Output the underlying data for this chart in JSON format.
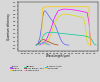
{
  "background": "#d8d8d8",
  "curves": {
    "silicon": {
      "color": "#6060ff",
      "x": [
        0.2,
        0.25,
        0.3,
        0.35,
        0.38,
        0.4,
        0.42,
        0.45,
        0.5,
        0.55,
        0.6,
        0.65,
        0.7,
        0.75,
        0.8,
        0.85,
        0.9,
        0.95,
        1.0,
        1.05,
        1.1
      ],
      "y": [
        0.0,
        0.05,
        0.18,
        0.5,
        0.72,
        0.82,
        0.88,
        0.88,
        0.82,
        0.75,
        0.68,
        0.62,
        0.55,
        0.45,
        0.32,
        0.2,
        0.1,
        0.04,
        0.01,
        0.0,
        0.0
      ]
    },
    "ingaas": {
      "color": "#ff00ff",
      "x": [
        0.3,
        0.35,
        0.4,
        0.45,
        0.5,
        0.6,
        0.7,
        0.8,
        0.9,
        1.0,
        1.1,
        1.2,
        1.3,
        1.4,
        1.5,
        1.6,
        1.65,
        1.7
      ],
      "y": [
        0.0,
        0.02,
        0.05,
        0.1,
        0.18,
        0.4,
        0.7,
        0.88,
        0.92,
        0.93,
        0.92,
        0.91,
        0.9,
        0.88,
        0.86,
        0.84,
        0.6,
        0.0
      ]
    },
    "ingaasinp": {
      "color": "#dddd00",
      "x": [
        0.4,
        0.45,
        0.5,
        0.6,
        0.7,
        0.8,
        0.9,
        1.0,
        1.1,
        1.2,
        1.3,
        1.4,
        1.5,
        1.55,
        1.6,
        1.65
      ],
      "y": [
        0.0,
        0.02,
        0.06,
        0.25,
        0.55,
        0.72,
        0.78,
        0.8,
        0.79,
        0.77,
        0.75,
        0.73,
        0.7,
        0.5,
        0.1,
        0.0
      ]
    },
    "hgcdte": {
      "color": "#00cc99",
      "x": [
        0.2,
        0.25,
        0.3,
        0.35,
        0.4,
        0.45,
        0.5,
        0.55,
        0.6,
        0.65,
        0.7,
        0.75,
        0.8,
        0.9,
        1.0,
        1.1,
        1.2,
        1.3,
        1.4,
        1.5,
        1.6,
        1.7,
        1.75,
        1.8,
        1.85
      ],
      "y": [
        0.0,
        0.02,
        0.08,
        0.15,
        0.25,
        0.3,
        0.32,
        0.33,
        0.33,
        0.33,
        0.32,
        0.32,
        0.31,
        0.3,
        0.29,
        0.28,
        0.27,
        0.26,
        0.25,
        0.24,
        0.22,
        0.18,
        0.1,
        0.02,
        0.0
      ]
    },
    "ccd": {
      "color": "#aa4400",
      "x": [
        0.2,
        0.25,
        0.28,
        0.3,
        0.32,
        0.35,
        0.38,
        0.4,
        0.42,
        0.45,
        0.5,
        0.55,
        0.6,
        0.65,
        0.7,
        0.75,
        0.8
      ],
      "y": [
        0.0,
        0.02,
        0.05,
        0.08,
        0.1,
        0.12,
        0.14,
        0.15,
        0.14,
        0.12,
        0.1,
        0.08,
        0.06,
        0.04,
        0.02,
        0.01,
        0.0
      ]
    },
    "eband_egs": {
      "color": "#ff88cc",
      "x": [
        0.2,
        0.25,
        0.3,
        0.35,
        0.4,
        0.45,
        0.5,
        0.55,
        0.6
      ],
      "y": [
        0.0,
        0.01,
        0.04,
        0.07,
        0.09,
        0.08,
        0.05,
        0.02,
        0.0
      ]
    },
    "eband_auge": {
      "color": "#00cccc",
      "x": [
        0.2,
        0.25,
        0.3,
        0.35,
        0.4,
        0.45,
        0.5,
        0.55
      ],
      "y": [
        0.0,
        0.01,
        0.03,
        0.05,
        0.06,
        0.05,
        0.02,
        0.0
      ]
    },
    "moonlight": {
      "color": "#ffcc00",
      "x": [
        0.35,
        0.36,
        0.37,
        0.4,
        0.5,
        0.6,
        0.7,
        0.8,
        0.9,
        1.0,
        1.1,
        1.2,
        1.3,
        1.4,
        1.5,
        1.6,
        1.65,
        1.66,
        1.7
      ],
      "y": [
        0.0,
        0.5,
        0.95,
        0.98,
        0.99,
        0.99,
        0.99,
        0.99,
        0.99,
        0.99,
        0.99,
        0.99,
        0.99,
        0.99,
        0.99,
        0.99,
        0.98,
        0.5,
        0.0
      ]
    }
  },
  "xlim": [
    -0.3,
    1.9
  ],
  "ylim": [
    -0.15,
    1.1
  ],
  "xtick_step": 0.1,
  "ytick_step": 0.1,
  "xlabel": "Wavelength (μm)",
  "ylabel": "Quantum efficiency",
  "legend": [
    {
      "label": "silicon",
      "color": "#6060ff"
    },
    {
      "label": "InGaAs",
      "color": "#ff00ff"
    },
    {
      "label": "InGaAsInP",
      "color": "#dddd00"
    },
    {
      "label": "HgCdTe",
      "color": "#00cc99"
    },
    {
      "label": "CCD Backill 4k+",
      "color": "#aa4400"
    },
    {
      "label": "E-band EGS",
      "color": "#ff88cc"
    },
    {
      "label": "E-band AuGe",
      "color": "#00cccc"
    },
    {
      "label": "Moonlight",
      "color": "#ffcc00"
    }
  ]
}
